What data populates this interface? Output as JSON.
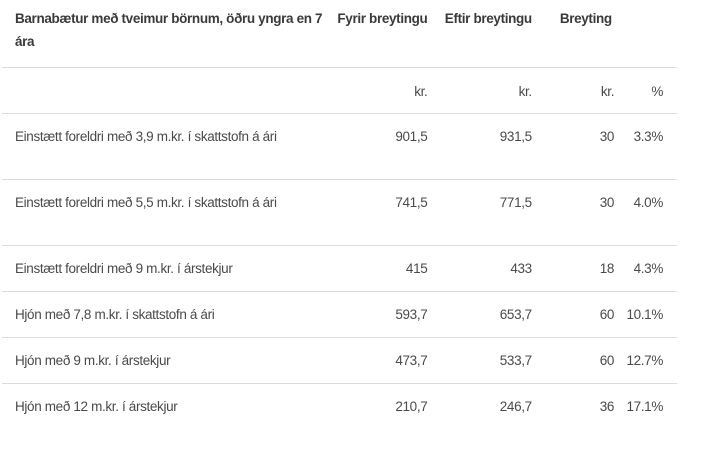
{
  "table": {
    "headers": [
      "Barnabætur með tveimur börnum, öðru yngra en 7 ára",
      "Fyrir breytingu",
      "Eftir breytingu",
      "Breyting",
      ""
    ],
    "units": [
      "",
      "kr.",
      "kr.",
      "kr.",
      "%"
    ],
    "rows": [
      [
        "Einstætt foreldri með 3,9 m.kr. í skattstofn á ári",
        "901,5",
        "931,5",
        "30",
        "3.3%"
      ],
      [
        "Einstætt foreldri með 5,5 m.kr. í skattstofn á ári",
        "741,5",
        "771,5",
        "30",
        "4.0%"
      ],
      [
        "Einstætt foreldri með 9 m.kr. í árstekjur",
        "415",
        "433",
        "18",
        "4.3%"
      ],
      [
        "Hjón með 7,8 m.kr. í skattstofn á ári",
        "593,7",
        "653,7",
        "60",
        "10.1%"
      ],
      [
        "Hjón með 9 m.kr. í árstekjur",
        "473,7",
        "533,7",
        "60",
        "12.7%"
      ],
      [
        "Hjón með 12 m.kr. í árstekjur",
        "210,7",
        "246,7",
        "36",
        "17.1%"
      ]
    ]
  }
}
